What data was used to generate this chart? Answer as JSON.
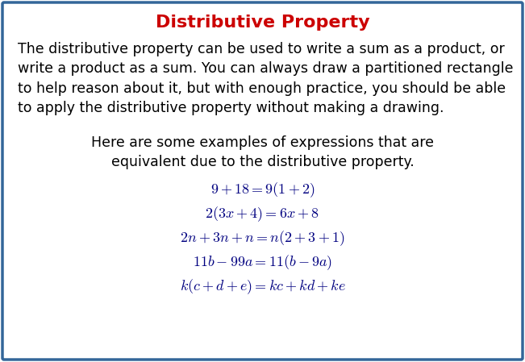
{
  "title": "Distributive Property",
  "title_color": "#CC0000",
  "title_fontsize": 16,
  "body_text_lines": [
    "The distributive property can be used to write a sum as a product, or",
    "write a product as a sum. You can always draw a partitioned rectangle",
    "to help reason about it, but with enough practice, you should be able",
    "to apply the distributive property without making a drawing."
  ],
  "body_fontsize": 12.5,
  "body_color": "#000000",
  "mid_text_line1": "Here are some examples of expressions that are",
  "mid_text_line2": "equivalent due to the distributive property.",
  "mid_fontsize": 12.5,
  "eq_latex": [
    "$9+18=9(1+2)$",
    "$2(3x+4)=6x+8$",
    "$2n+3n+n=n(2+3+1)$",
    "$11b-99a=11(b-9a)$",
    "$k(c+d+e)=kc+kd+ke$"
  ],
  "eq_fontsize": 13,
  "eq_color": "#000080",
  "bg_color": "#FFFFFF",
  "border_color": "#336699",
  "border_linewidth": 2.5,
  "fig_width": 6.51,
  "fig_height": 4.49,
  "dpi": 100
}
